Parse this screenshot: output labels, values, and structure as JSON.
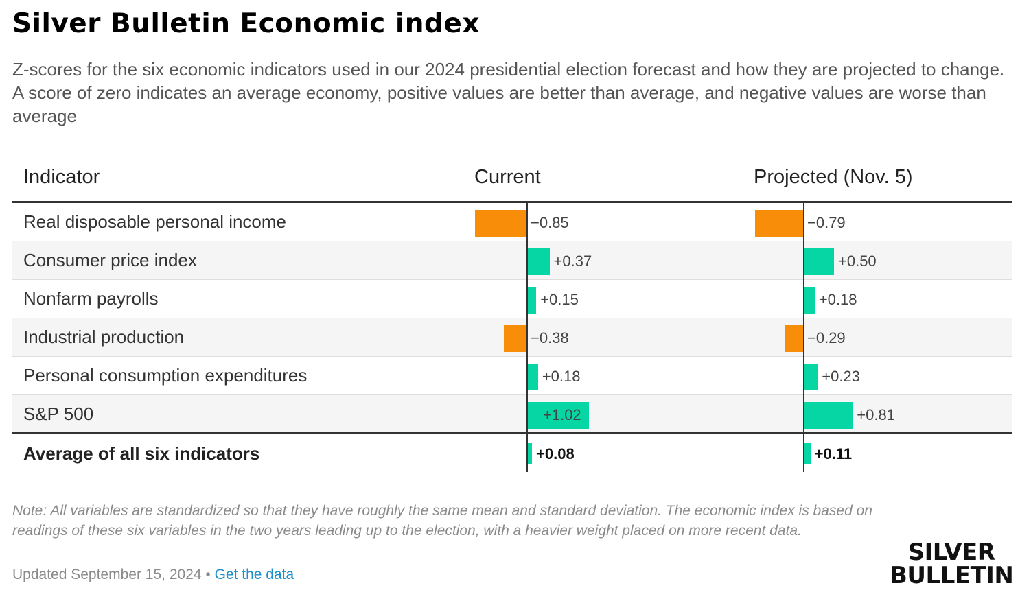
{
  "title": "Silver Bulletin Economic index",
  "subtitle": "Z-scores for the six economic indicators used in our 2024 presidential election forecast and how they are projected to change. A score of zero indicates an average economy, positive values are better than average, and negative values are worse than average",
  "columns": {
    "indicator": "Indicator",
    "current": "Current",
    "projected": "Projected (Nov. 5)"
  },
  "chart_data": {
    "type": "bar",
    "categories": [
      "Real disposable personal income",
      "Consumer price index",
      "Nonfarm payrolls",
      "Industrial production",
      "Personal consumption expenditures",
      "S&P 500"
    ],
    "series": [
      {
        "name": "Current",
        "values": [
          -0.85,
          0.37,
          0.15,
          -0.38,
          0.18,
          1.02
        ],
        "labels": [
          "−0.85",
          "+0.37",
          "+0.15",
          "−0.38",
          "+0.18",
          "+1.02"
        ]
      },
      {
        "name": "Projected (Nov. 5)",
        "values": [
          -0.79,
          0.5,
          0.18,
          -0.29,
          0.23,
          0.81
        ],
        "labels": [
          "−0.79",
          "+0.50",
          "+0.18",
          "−0.29",
          "+0.23",
          "+0.81"
        ]
      }
    ],
    "average": {
      "label": "Average of all six indicators",
      "values": [
        0.08,
        0.11
      ],
      "labels": [
        "+0.08",
        "+0.11"
      ]
    },
    "colors": {
      "positive": "#05d6a4",
      "negative": "#f88d0a"
    }
  },
  "note": "Note: All variables are standardized so that they have roughly the same mean and standard deviation. The economic index is based on readings of these six variables in the two years leading up to the election, with a heavier weight placed on more recent data.",
  "updated": "Updated September 15, 2024",
  "separator": "•",
  "get_data_link": "Get the data",
  "logo": {
    "line1": "SILVER",
    "line2": "BULLETIN"
  }
}
